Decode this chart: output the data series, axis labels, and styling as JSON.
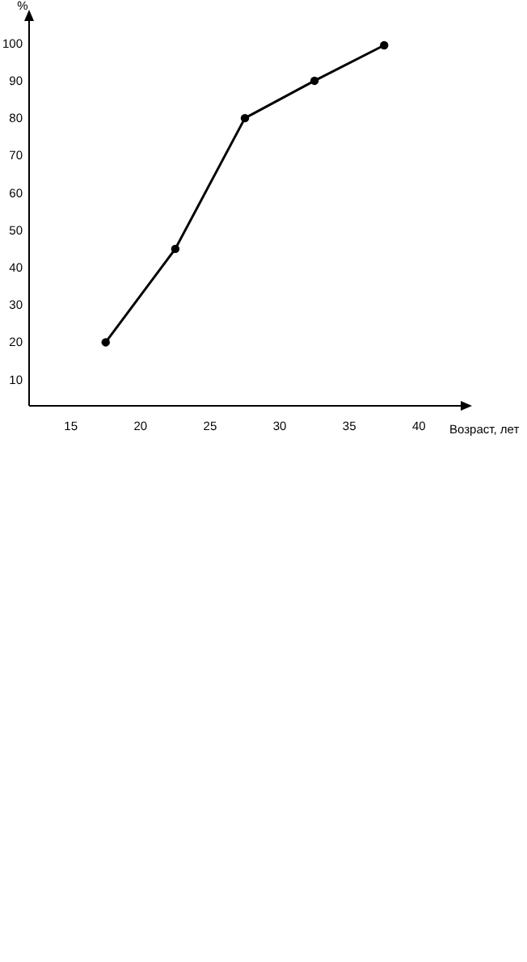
{
  "chart_data": {
    "type": "line",
    "xlabel": "Возраст, лет",
    "ylabel": "%",
    "x": [
      17.5,
      22.5,
      27.5,
      32.5,
      37.5
    ],
    "series": [
      {
        "color": "#000000",
        "values": [
          20,
          45,
          80,
          90,
          99.5
        ]
      }
    ],
    "xlim": [
      12,
      43
    ],
    "xticks": [
      15,
      20,
      25,
      30,
      35,
      40
    ],
    "ylim": [
      3,
      106
    ],
    "yticks": [
      10,
      20,
      30,
      40,
      50,
      60,
      70,
      80,
      90,
      100
    ],
    "marker": "circle",
    "line_style": "solid",
    "grid": false
  }
}
